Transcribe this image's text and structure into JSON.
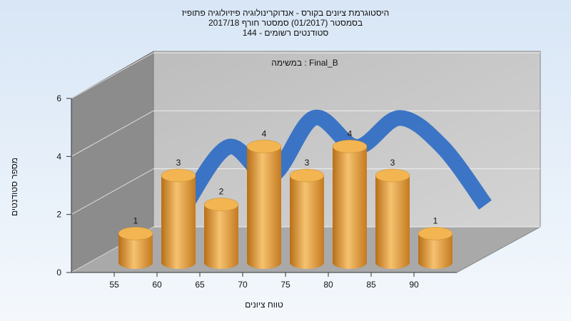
{
  "chart_data": {
    "type": "histogram",
    "title": [
      "היסטוגרמת ציונים בקורס - אנדוקרינולוגיה פיזיולוגיה פתופיז",
      "בסמסטר  (01/2017)  סמסטר חורף  2017/18",
      "סטודנטים רשומים - 144"
    ],
    "annotation": "במשימה : Final_B",
    "xlabel": "טווח ציונים",
    "ylabel": "מספר סטודנטים",
    "bins": [
      55,
      60,
      65,
      70,
      75,
      80,
      85,
      90,
      95
    ],
    "values": [
      1,
      3,
      2,
      4,
      3,
      4,
      3,
      1
    ],
    "color": "#e3a040",
    "line_color": "#3470c4",
    "xticks": [
      55,
      60,
      65,
      70,
      75,
      80,
      85,
      90
    ],
    "ylim": [
      0,
      6
    ],
    "yticks": [
      0,
      2,
      4,
      6
    ],
    "grid": true
  }
}
